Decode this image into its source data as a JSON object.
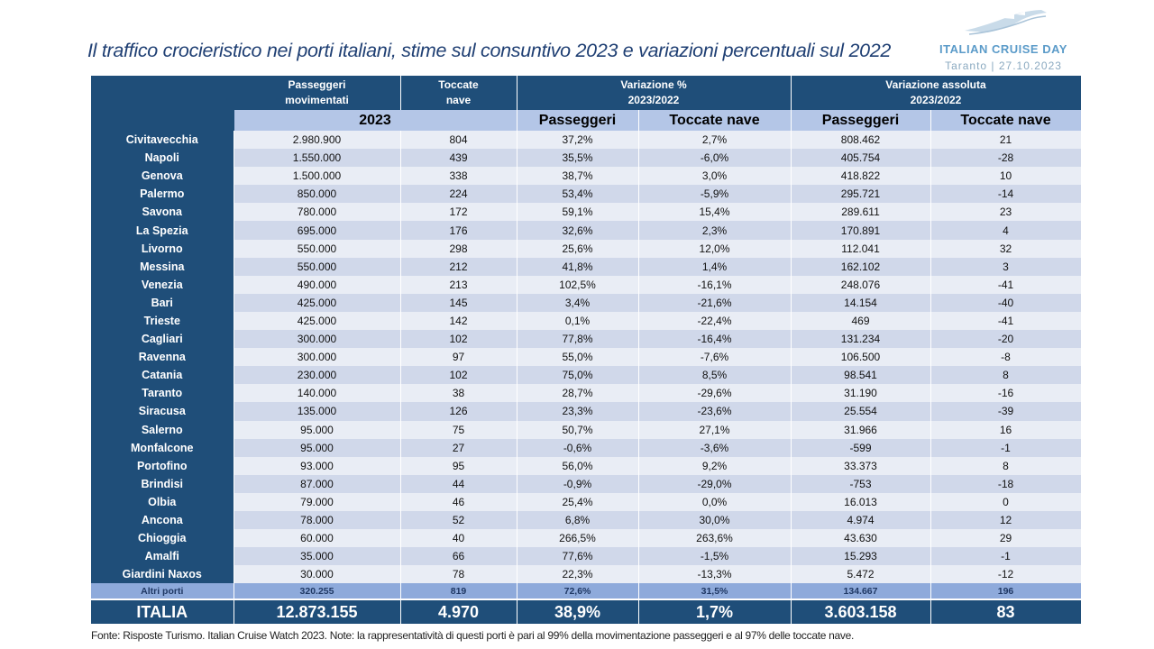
{
  "title": "Il traffico crocieristico nei porti italiani, stime sul consuntivo 2023 e variazioni percentuali sul 2022",
  "logo": {
    "name": "ITALIAN CRUISE DAY",
    "sub": "Taranto | 27.10.2023",
    "icon": "ship-icon"
  },
  "header": {
    "passeggeri": "Passeggeri movimentati",
    "toccate": "Toccate nave",
    "var_pct": "Variazione % 2023/2022",
    "var_abs": "Variazione assoluta 2023/2022",
    "year": "2023",
    "passeggeri_short": "Passeggeri",
    "toccate_short": "Toccate nave",
    "passeggeri_short2": "Passeggeri",
    "toccate_short2": "Toccate nave"
  },
  "rows": [
    {
      "port": "Civitavecchia",
      "pax": "2.980.900",
      "ships": "804",
      "pax_pct": "37,2%",
      "ships_pct": "2,7%",
      "pax_abs": "808.462",
      "ships_abs": "21"
    },
    {
      "port": "Napoli",
      "pax": "1.550.000",
      "ships": "439",
      "pax_pct": "35,5%",
      "ships_pct": "-6,0%",
      "pax_abs": "405.754",
      "ships_abs": "-28"
    },
    {
      "port": "Genova",
      "pax": "1.500.000",
      "ships": "338",
      "pax_pct": "38,7%",
      "ships_pct": "3,0%",
      "pax_abs": "418.822",
      "ships_abs": "10"
    },
    {
      "port": "Palermo",
      "pax": "850.000",
      "ships": "224",
      "pax_pct": "53,4%",
      "ships_pct": "-5,9%",
      "pax_abs": "295.721",
      "ships_abs": "-14"
    },
    {
      "port": "Savona",
      "pax": "780.000",
      "ships": "172",
      "pax_pct": "59,1%",
      "ships_pct": "15,4%",
      "pax_abs": "289.611",
      "ships_abs": "23"
    },
    {
      "port": "La Spezia",
      "pax": "695.000",
      "ships": "176",
      "pax_pct": "32,6%",
      "ships_pct": "2,3%",
      "pax_abs": "170.891",
      "ships_abs": "4"
    },
    {
      "port": "Livorno",
      "pax": "550.000",
      "ships": "298",
      "pax_pct": "25,6%",
      "ships_pct": "12,0%",
      "pax_abs": "112.041",
      "ships_abs": "32"
    },
    {
      "port": "Messina",
      "pax": "550.000",
      "ships": "212",
      "pax_pct": "41,8%",
      "ships_pct": "1,4%",
      "pax_abs": "162.102",
      "ships_abs": "3"
    },
    {
      "port": "Venezia",
      "pax": "490.000",
      "ships": "213",
      "pax_pct": "102,5%",
      "ships_pct": "-16,1%",
      "pax_abs": "248.076",
      "ships_abs": "-41"
    },
    {
      "port": "Bari",
      "pax": "425.000",
      "ships": "145",
      "pax_pct": "3,4%",
      "ships_pct": "-21,6%",
      "pax_abs": "14.154",
      "ships_abs": "-40"
    },
    {
      "port": "Trieste",
      "pax": "425.000",
      "ships": "142",
      "pax_pct": "0,1%",
      "ships_pct": "-22,4%",
      "pax_abs": "469",
      "ships_abs": "-41"
    },
    {
      "port": "Cagliari",
      "pax": "300.000",
      "ships": "102",
      "pax_pct": "77,8%",
      "ships_pct": "-16,4%",
      "pax_abs": "131.234",
      "ships_abs": "-20"
    },
    {
      "port": "Ravenna",
      "pax": "300.000",
      "ships": "97",
      "pax_pct": "55,0%",
      "ships_pct": "-7,6%",
      "pax_abs": "106.500",
      "ships_abs": "-8"
    },
    {
      "port": "Catania",
      "pax": "230.000",
      "ships": "102",
      "pax_pct": "75,0%",
      "ships_pct": "8,5%",
      "pax_abs": "98.541",
      "ships_abs": "8"
    },
    {
      "port": "Taranto",
      "pax": "140.000",
      "ships": "38",
      "pax_pct": "28,7%",
      "ships_pct": "-29,6%",
      "pax_abs": "31.190",
      "ships_abs": "-16"
    },
    {
      "port": "Siracusa",
      "pax": "135.000",
      "ships": "126",
      "pax_pct": "23,3%",
      "ships_pct": "-23,6%",
      "pax_abs": "25.554",
      "ships_abs": "-39"
    },
    {
      "port": "Salerno",
      "pax": "95.000",
      "ships": "75",
      "pax_pct": "50,7%",
      "ships_pct": "27,1%",
      "pax_abs": "31.966",
      "ships_abs": "16"
    },
    {
      "port": "Monfalcone",
      "pax": "95.000",
      "ships": "27",
      "pax_pct": "-0,6%",
      "ships_pct": "-3,6%",
      "pax_abs": "-599",
      "ships_abs": "-1"
    },
    {
      "port": "Portofino",
      "pax": "93.000",
      "ships": "95",
      "pax_pct": "56,0%",
      "ships_pct": "9,2%",
      "pax_abs": "33.373",
      "ships_abs": "8"
    },
    {
      "port": "Brindisi",
      "pax": "87.000",
      "ships": "44",
      "pax_pct": "-0,9%",
      "ships_pct": "-29,0%",
      "pax_abs": "-753",
      "ships_abs": "-18"
    },
    {
      "port": "Olbia",
      "pax": "79.000",
      "ships": "46",
      "pax_pct": "25,4%",
      "ships_pct": "0,0%",
      "pax_abs": "16.013",
      "ships_abs": "0"
    },
    {
      "port": "Ancona",
      "pax": "78.000",
      "ships": "52",
      "pax_pct": "6,8%",
      "ships_pct": "30,0%",
      "pax_abs": "4.974",
      "ships_abs": "12"
    },
    {
      "port": "Chioggia",
      "pax": "60.000",
      "ships": "40",
      "pax_pct": "266,5%",
      "ships_pct": "263,6%",
      "pax_abs": "43.630",
      "ships_abs": "29"
    },
    {
      "port": "Amalfi",
      "pax": "35.000",
      "ships": "66",
      "pax_pct": "77,6%",
      "ships_pct": "-1,5%",
      "pax_abs": "15.293",
      "ships_abs": "-1"
    },
    {
      "port": "Giardini Naxos",
      "pax": "30.000",
      "ships": "78",
      "pax_pct": "22,3%",
      "ships_pct": "-13,3%",
      "pax_abs": "5.472",
      "ships_abs": "-12"
    }
  ],
  "altri": {
    "port": "Altri porti",
    "pax": "320.255",
    "ships": "819",
    "pax_pct": "72,6%",
    "ships_pct": "31,5%",
    "pax_abs": "134.667",
    "ships_abs": "196"
  },
  "italia": {
    "port": "ITALIA",
    "pax": "12.873.155",
    "ships": "4.970",
    "pax_pct": "38,9%",
    "ships_pct": "1,7%",
    "pax_abs": "3.603.158",
    "ships_abs": "83"
  },
  "footnote": "Fonte: Risposte Turismo. Italian Cruise Watch 2023. Note: la rappresentatività di questi porti è pari al 99% della movimentazione passeggeri e al 97% delle toccate nave."
}
